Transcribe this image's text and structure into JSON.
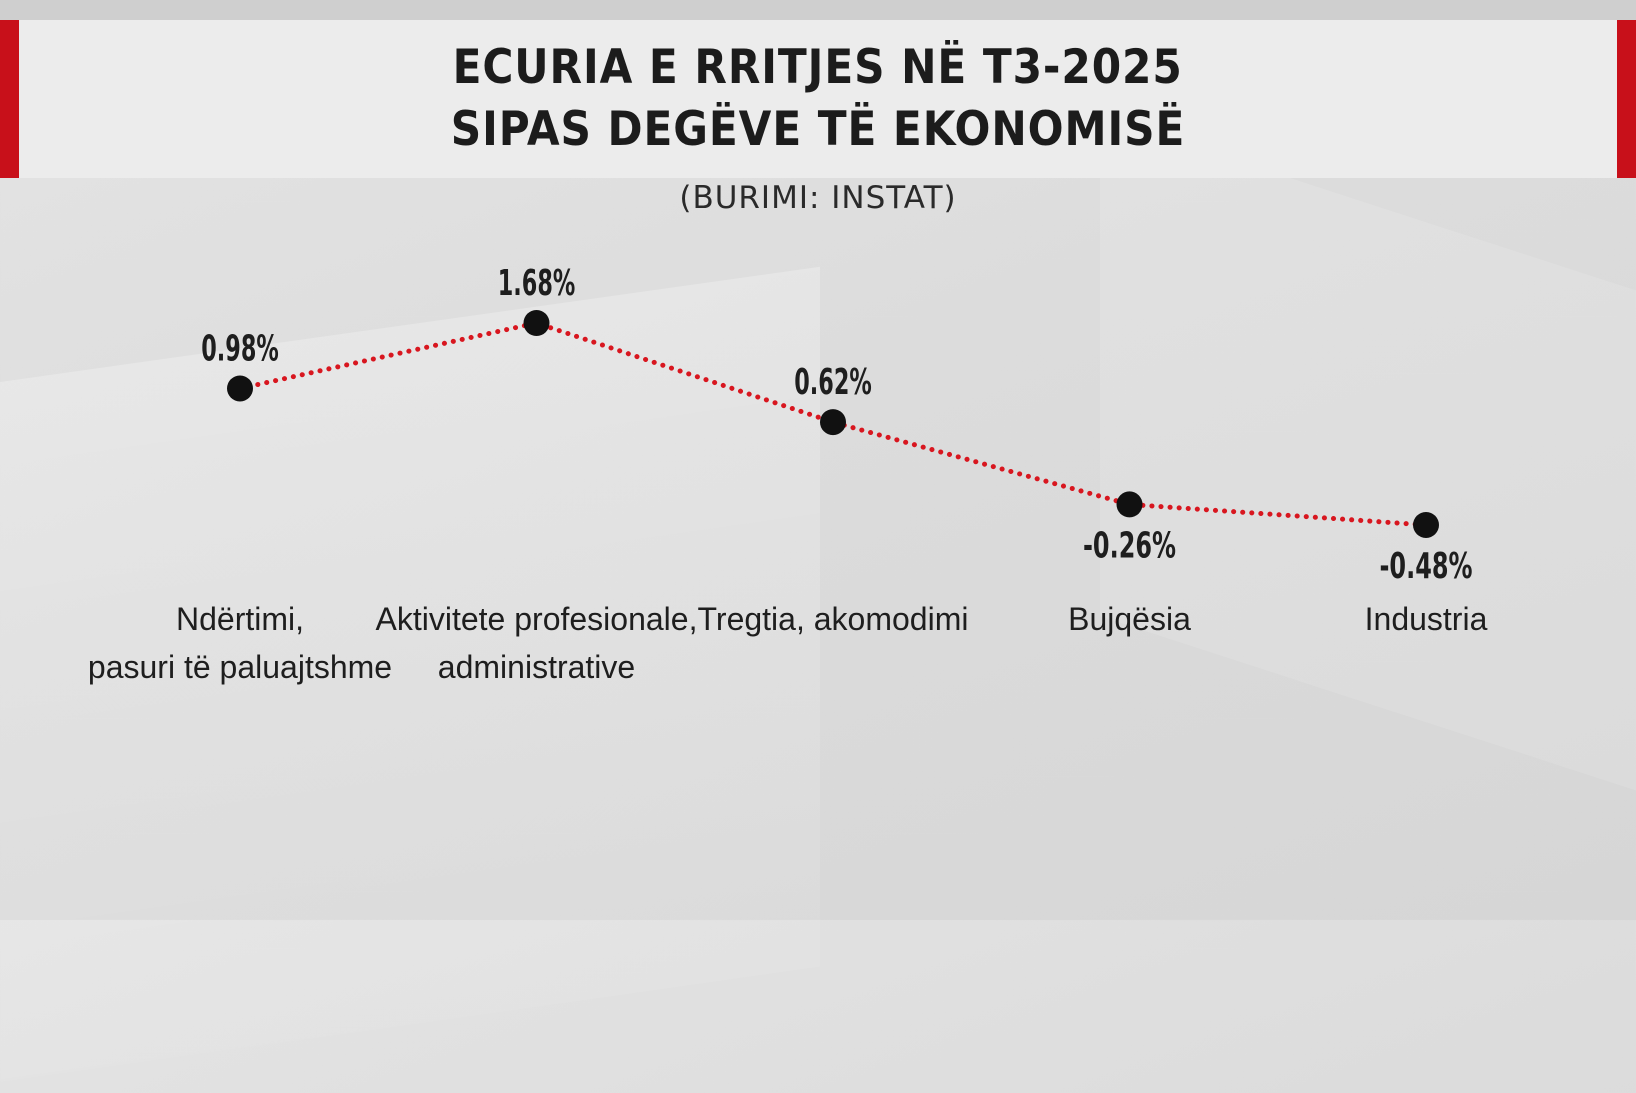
{
  "title_lines": [
    "ECURIA E RRITJES NË T3-2025",
    "SIPAS DEGËVE TË EKONOMISË"
  ],
  "source": "(BURIMI: INSTAT)",
  "colors": {
    "accent": "#c8101a",
    "line": "#d8161f",
    "marker": "#111111"
  },
  "chart_data": {
    "type": "line",
    "title": "ECURIA E RRITJES NË T3-2025 SIPAS DEGËVE TË EKONOMISË",
    "categories": [
      [
        "Ndërtimi,",
        "pasuri të paluajtshme"
      ],
      [
        "Aktivitete profesionale,",
        "administrative"
      ],
      [
        "Tregtia, akomodimi"
      ],
      [
        "Bujqësia"
      ],
      [
        "Industria"
      ]
    ],
    "values": [
      0.98,
      1.68,
      0.62,
      -0.26,
      -0.48
    ],
    "value_labels": [
      "0.98%",
      "1.68%",
      "0.62%",
      "-0.26%",
      "-0.48%"
    ],
    "label_positions": [
      "above",
      "above",
      "above",
      "below",
      "below"
    ],
    "line_style": "dotted",
    "grid": false,
    "legend": "none"
  }
}
